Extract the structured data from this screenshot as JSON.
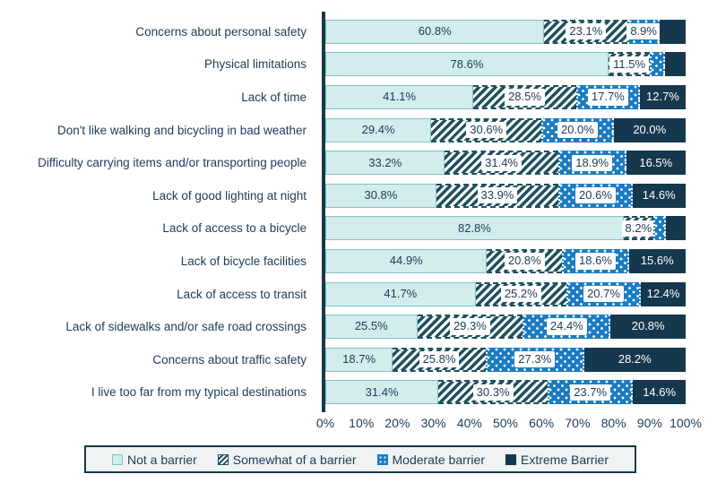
{
  "chart_data": {
    "type": "bar",
    "variant": "horizontal-stacked",
    "unit": "%",
    "title": "",
    "categories": [
      "Concerns about personal safety",
      "Physical limitations",
      "Lack of time",
      "Don't like walking and bicycling in bad weather",
      "Difficulty carrying items and/or transporting people",
      "Lack of good lighting at night",
      "Lack of access to a bicycle",
      "Lack of bicycle facilities",
      "Lack of access to transit",
      "Lack of sidewalks and/or safe road crossings",
      "Concerns about traffic safety",
      "I live too far from my typical destinations"
    ],
    "series": [
      {
        "name": "Not a barrier",
        "pattern": "solid-light-teal",
        "values": [
          60.8,
          78.6,
          41.1,
          29.4,
          33.2,
          30.8,
          82.8,
          44.9,
          41.7,
          25.5,
          18.7,
          31.4
        ],
        "labels": [
          "60.8%",
          "78.6%",
          "41.1%",
          "29.4%",
          "33.2%",
          "30.8%",
          "82.8%",
          "44.9%",
          "41.7%",
          "25.5%",
          "18.7%",
          "31.4%"
        ]
      },
      {
        "name": "Somewhat of a barrier",
        "pattern": "diagonal-hatch",
        "values": [
          23.1,
          11.5,
          28.5,
          30.6,
          31.4,
          33.9,
          8.2,
          20.8,
          25.2,
          29.3,
          25.8,
          30.3
        ],
        "labels": [
          "23.1%",
          "11.5%",
          "28.5%",
          "30.6%",
          "31.4%",
          "33.9%",
          "8.2%",
          "20.8%",
          "25.2%",
          "29.3%",
          "25.8%",
          "30.3%"
        ]
      },
      {
        "name": "Moderate barrier",
        "pattern": "dotted-blue",
        "values": [
          8.9,
          4.2,
          17.7,
          20.0,
          18.9,
          20.6,
          3.5,
          18.6,
          20.7,
          24.4,
          27.3,
          23.7
        ],
        "labels": [
          "8.9%",
          null,
          "17.7%",
          "20.0%",
          "18.9%",
          "20.6%",
          null,
          "18.6%",
          "20.7%",
          "24.4%",
          "27.3%",
          "23.7%"
        ]
      },
      {
        "name": "Extreme Barrier",
        "pattern": "solid-dark-navy",
        "values": [
          7.2,
          5.7,
          12.7,
          20.0,
          16.5,
          14.6,
          5.5,
          15.6,
          12.4,
          20.8,
          28.2,
          14.6
        ],
        "labels": [
          null,
          null,
          "12.7%",
          "20.0%",
          "16.5%",
          "14.6%",
          null,
          "15.6%",
          "12.4%",
          "20.8%",
          "28.2%",
          "14.6%"
        ]
      }
    ],
    "x_axis": {
      "ticks": [
        "0%",
        "10%",
        "20%",
        "30%",
        "40%",
        "50%",
        "60%",
        "70%",
        "80%",
        "90%",
        "100%"
      ],
      "range": [
        0,
        100
      ]
    },
    "legend": {
      "position": "bottom",
      "entries": [
        "Not a barrier",
        "Somewhat of a barrier",
        "Moderate barrier",
        "Extreme Barrier"
      ]
    },
    "grid": false
  },
  "colors": {
    "not_a_barrier_fill": "#d3ecec",
    "not_a_barrier_border": "#86c1c3",
    "somewhat_hatch": "#1e515e",
    "moderate_fill": "#1a7bc2",
    "extreme_fill": "#16384e",
    "text": "#1e3a57",
    "legend_bg": "#eff3f3",
    "legend_border": "#16384e",
    "axis_line": "#16384e",
    "value_label_box_bg": "#ffffff"
  }
}
